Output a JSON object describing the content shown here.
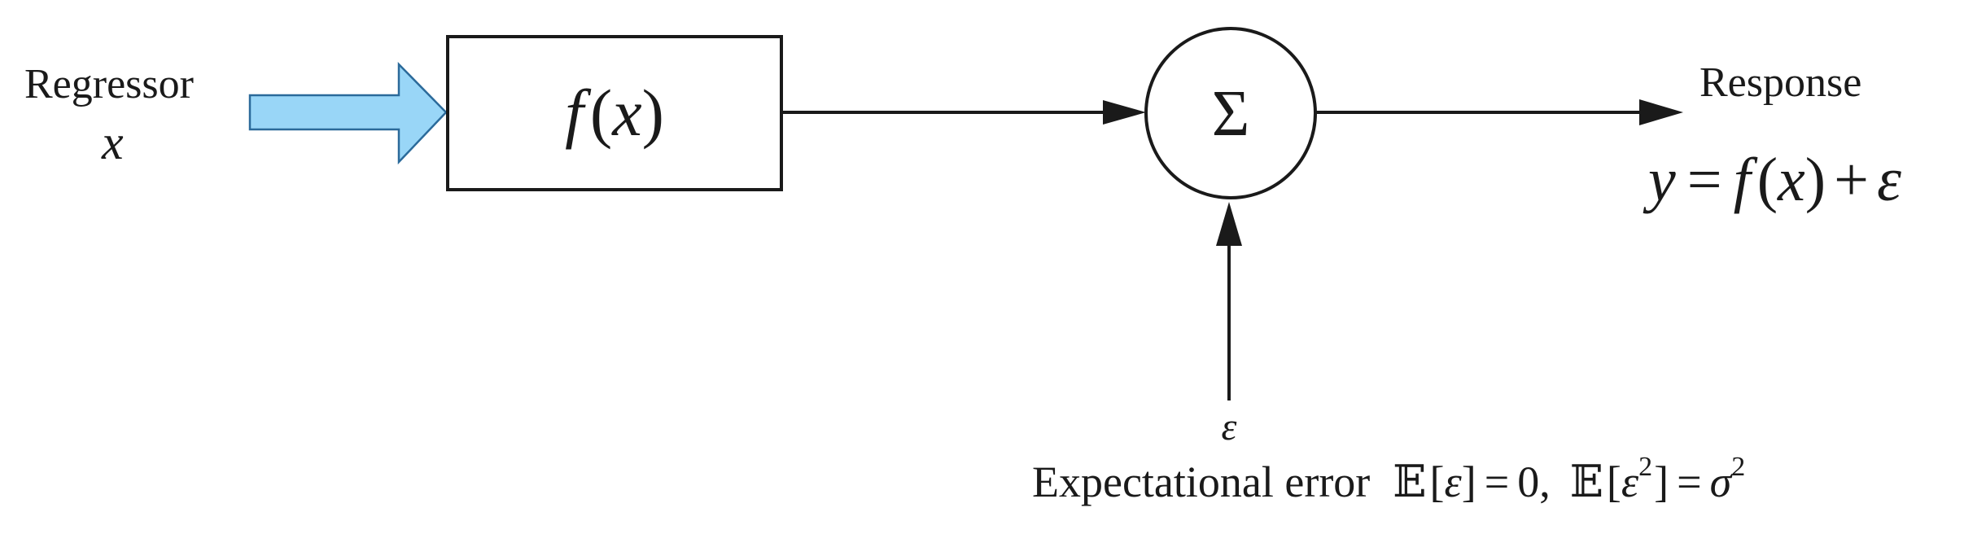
{
  "regressor": {
    "label": "Regressor",
    "variable": "x"
  },
  "function_block": {
    "f": "f",
    "open": "(",
    "arg": "x",
    "close": ")"
  },
  "summing_junction": {
    "symbol": "Σ"
  },
  "response": {
    "label": "Response",
    "equation": {
      "y": "y",
      "equals": "=",
      "f": "f",
      "open": "(",
      "x": "x",
      "close": ")",
      "plus": "+",
      "eps": "ε"
    }
  },
  "error": {
    "symbol": "ε",
    "label": "Expectational error",
    "e1": "𝔼",
    "b1open": "[",
    "eps1": "ε",
    "b1close": "]",
    "eq1": "=",
    "zero": "0,",
    "e2": "𝔼",
    "b2open": "[",
    "eps2": "ε",
    "sq2": "2",
    "b2close": "]",
    "eq2": "=",
    "sigma": "σ",
    "sq3": "2"
  },
  "colors": {
    "input_arrow_fill": "#99d6f7",
    "input_arrow_stroke": "#2b6a9a",
    "line": "#1a1a1a"
  }
}
